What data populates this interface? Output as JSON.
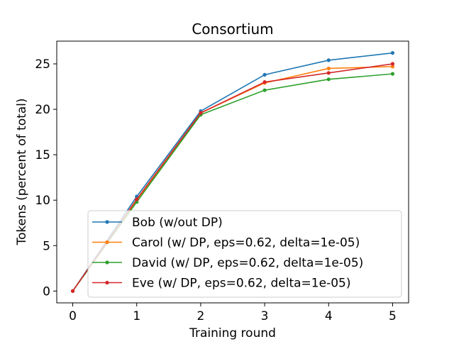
{
  "chart_data": {
    "type": "line",
    "title": "Consortium",
    "xlabel": "Training round",
    "ylabel": "Tokens (percent of total)",
    "x": [
      0,
      1,
      2,
      3,
      4,
      5
    ],
    "xlim": [
      -0.25,
      5.25
    ],
    "ylim": [
      -1.3,
      27.5
    ],
    "xticks": [
      0,
      1,
      2,
      3,
      4,
      5
    ],
    "yticks": [
      0,
      5,
      10,
      15,
      20,
      25
    ],
    "grid": false,
    "legend_position": "lower-right",
    "series": [
      {
        "name": "Bob (w/out DP)",
        "color": "#1f77b4",
        "values": [
          0,
          10.4,
          19.8,
          23.8,
          25.4,
          26.2
        ]
      },
      {
        "name": "Carol (w/ DP, eps=0.62, delta=1e-05)",
        "color": "#ff7f0e",
        "values": [
          0,
          9.9,
          19.6,
          22.9,
          24.5,
          24.7
        ]
      },
      {
        "name": "David (w/ DP, eps=0.62, delta=1e-05)",
        "color": "#2ca02c",
        "values": [
          0,
          9.8,
          19.4,
          22.1,
          23.3,
          23.9
        ]
      },
      {
        "name": "Eve (w/ DP, eps=0.62, delta=1e-05)",
        "color": "#d62728",
        "values": [
          0,
          10.1,
          19.6,
          23.0,
          24.0,
          25.0
        ]
      }
    ]
  }
}
